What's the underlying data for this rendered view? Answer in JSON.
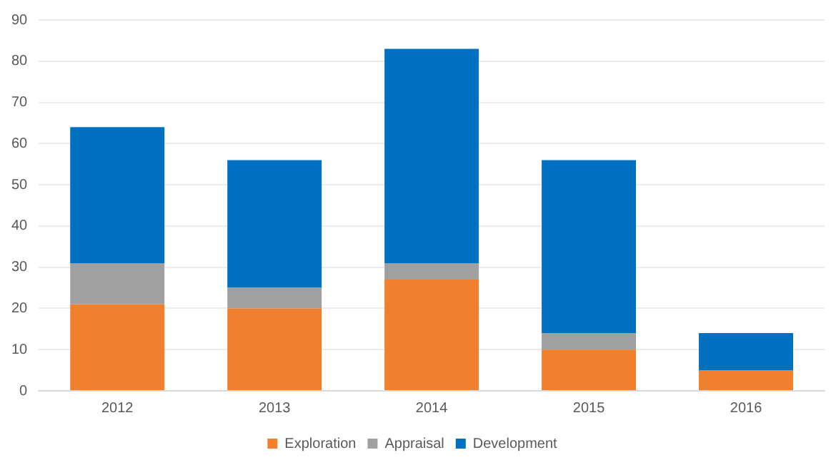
{
  "chart_data": {
    "type": "bar",
    "stacked": true,
    "categories": [
      "2012",
      "2013",
      "2014",
      "2015",
      "2016"
    ],
    "series": [
      {
        "name": "Exploration",
        "color": "#f07f2e",
        "values": [
          21,
          20,
          27,
          10,
          5
        ]
      },
      {
        "name": "Appraisal",
        "color": "#a0a0a0",
        "values": [
          10,
          5,
          4,
          4,
          0
        ]
      },
      {
        "name": "Development",
        "color": "#0070c0",
        "values": [
          33,
          31,
          52,
          42,
          9
        ]
      }
    ],
    "ylim": [
      0,
      90
    ],
    "yticks": [
      0,
      10,
      20,
      30,
      40,
      50,
      60,
      70,
      80,
      90
    ],
    "grid": "y",
    "legend": "bottom"
  }
}
